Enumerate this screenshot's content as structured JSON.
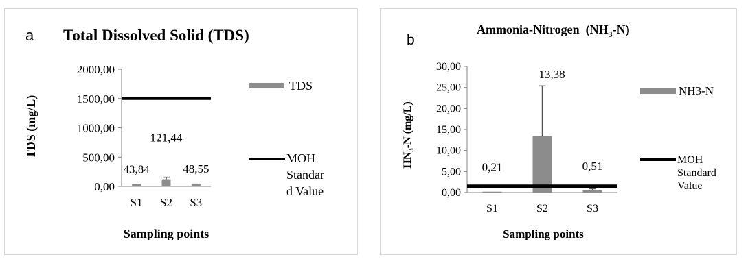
{
  "chart_data": [
    {
      "type": "bar",
      "panel_letter": "a",
      "title": "Total Dissolved Solid (TDS)",
      "xlabel": "Sampling points",
      "ylabel": "TDS (mg/L)",
      "categories": [
        "S1",
        "S2",
        "S3"
      ],
      "series": [
        {
          "name": "TDS",
          "values": [
            43.84,
            121.44,
            48.55
          ],
          "errors": [
            0,
            35,
            0
          ],
          "data_labels": [
            "43,84",
            "121,44",
            "48,55"
          ],
          "color": "#8c8c8c"
        }
      ],
      "reference_line": {
        "name": "MOH Standard Value",
        "legend_lines": [
          "MOH",
          "Standar",
          "d Value"
        ],
        "value": 1500,
        "color": "#000000"
      },
      "y_ticks": [
        "0,00",
        "500,00",
        "1000,00",
        "1500,00",
        "2000,00"
      ],
      "ylim": [
        0,
        2000
      ],
      "legend_position": "right"
    },
    {
      "type": "bar",
      "panel_letter": "b",
      "title": "Ammonia-Nitrogen",
      "title_formula": {
        "pre": "(NH",
        "sub": "3",
        "post": "-N)"
      },
      "xlabel": "Sampling points",
      "ylabel": {
        "pre": "HN",
        "sub": "3",
        "post": "-N (mg/L)"
      },
      "categories": [
        "S1",
        "S2",
        "S3"
      ],
      "series": [
        {
          "name": "NH3-N",
          "values": [
            0.21,
            13.38,
            0.51
          ],
          "errors": [
            0,
            12,
            0.4
          ],
          "data_labels": [
            "0,21",
            "13,38",
            "0,51"
          ],
          "color": "#8c8c8c"
        }
      ],
      "reference_line": {
        "name": "MOH Standard Value",
        "legend_lines": [
          "MOH",
          "Standard",
          "Value"
        ],
        "value": 1.5,
        "color": "#000000"
      },
      "y_ticks": [
        "0,00",
        "5,00",
        "10,00",
        "15,00",
        "20,00",
        "25,00",
        "30,00"
      ],
      "ylim": [
        0,
        30
      ],
      "legend_position": "right"
    }
  ]
}
